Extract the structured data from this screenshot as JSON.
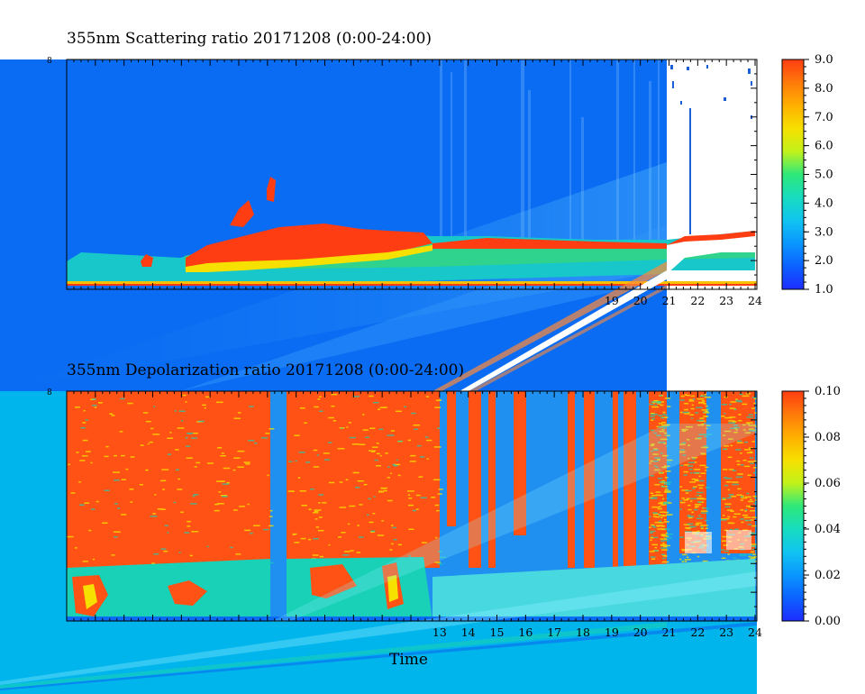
{
  "chart_data": [
    {
      "type": "heatmap",
      "title": "355nm Scattering ratio  20171208 (0:00-24:00)",
      "y_top_tick_label": "8",
      "x": [
        0,
        1,
        2,
        3,
        4,
        5,
        6,
        7,
        8,
        9,
        10,
        11,
        12,
        13,
        14,
        15,
        16,
        17,
        18,
        19,
        20,
        21,
        22,
        23,
        24
      ],
      "x_tick_labels": [
        "19",
        "20",
        "21",
        "22",
        "23",
        "24"
      ],
      "x_tick_values": [
        19,
        20,
        21,
        22,
        23,
        24
      ],
      "xlim": [
        0,
        24
      ],
      "colorbar": {
        "min": 1.0,
        "max": 9.0,
        "tick_labels": [
          "1.0",
          "2.0",
          "3.0",
          "4.0",
          "5.0",
          "6.0",
          "7.0",
          "8.0",
          "9.0"
        ],
        "tick_values": [
          1,
          2,
          3,
          4,
          5,
          6,
          7,
          8,
          9
        ]
      },
      "colors": {
        "background_low": "#0a6cf2",
        "mid": "#19d1b7",
        "high": "#ff3d12",
        "no_data": "#ffffff"
      }
    },
    {
      "type": "heatmap",
      "title": "355nm Depolarization ratio  20171208 (0:00-24:00)",
      "y_top_tick_label": "8",
      "x": [
        0,
        1,
        2,
        3,
        4,
        5,
        6,
        7,
        8,
        9,
        10,
        11,
        12,
        13,
        14,
        15,
        16,
        17,
        18,
        19,
        20,
        21,
        22,
        23,
        24
      ],
      "x_tick_labels": [
        "13",
        "14",
        "15",
        "16",
        "17",
        "18",
        "19",
        "20",
        "21",
        "22",
        "23",
        "24"
      ],
      "x_tick_values": [
        13,
        14,
        15,
        16,
        17,
        18,
        19,
        20,
        21,
        22,
        23,
        24
      ],
      "xlim": [
        0,
        24
      ],
      "xlabel": "Time",
      "colorbar": {
        "min": 0.0,
        "max": 0.1,
        "tick_labels": [
          "0.00",
          "0.02",
          "0.04",
          "0.06",
          "0.08",
          "0.10"
        ],
        "tick_values": [
          0.0,
          0.02,
          0.04,
          0.06,
          0.08,
          0.1
        ]
      },
      "colors": {
        "background_low": "#00b4ec",
        "mid": "#1f8ff0",
        "high": "#ff4a10",
        "no_data": "#ffffff"
      }
    }
  ],
  "colormap": [
    "#1d2cff",
    "#0c62ff",
    "#0a96ff",
    "#10c4f0",
    "#18dcc0",
    "#2ee87a",
    "#6ef23a",
    "#c2f21a",
    "#f6e000",
    "#ffb000",
    "#ff7a0a",
    "#ff3d12"
  ]
}
